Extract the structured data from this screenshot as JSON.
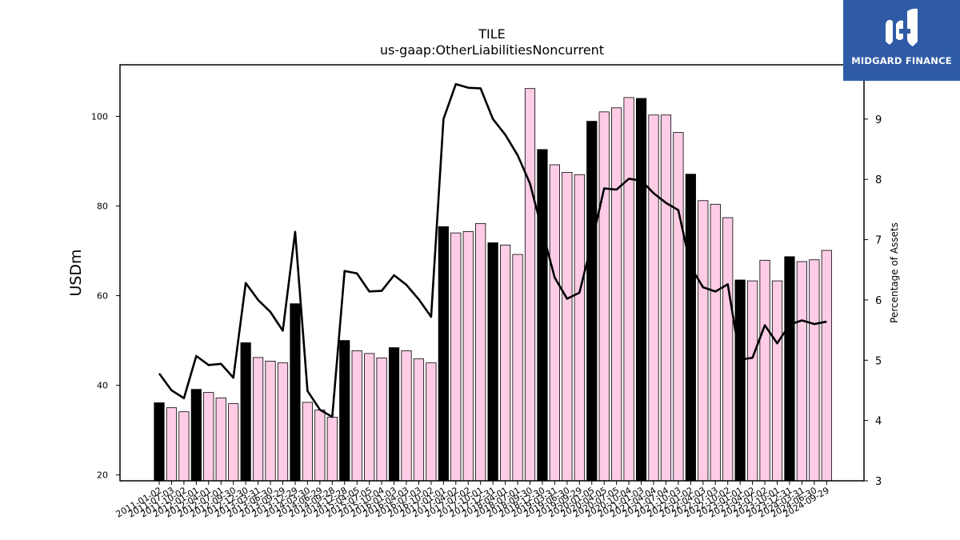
{
  "chart_data": {
    "type": "bar+line",
    "title": "TILE",
    "subtitle": "us-gaap:OtherLiabilitiesNoncurrent",
    "ylabel_left": "USDm",
    "ylabel_right": "Percentage of Assets",
    "ylim_left": [
      18.7,
      111.5
    ],
    "ylim_right": [
      3.0,
      9.9
    ],
    "yticks_left": [
      "20",
      "40",
      "60",
      "80",
      "100"
    ],
    "yticks_right": [
      "3",
      "4",
      "5",
      "6",
      "7",
      "8",
      "9"
    ],
    "grid": false,
    "categories": [
      "2011-01-02",
      "2011-07-03",
      "2011-10-02",
      "2012-01-01",
      "2012-04-01",
      "2012-07-01",
      "2012-09-30",
      "2012-12-30",
      "2013-03-31",
      "2013-06-30",
      "2013-09-29",
      "2013-12-29",
      "2014-03-30",
      "2014-06-29",
      "2014-09-28",
      "2014-12-28",
      "2015-04-05",
      "2015-07-05",
      "2015-10-04",
      "2016-01-03",
      "2016-04-03",
      "2016-07-03",
      "2016-10-02",
      "2017-01-01",
      "2017-04-02",
      "2017-07-02",
      "2017-10-01",
      "2017-12-31",
      "2018-04-01",
      "2018-07-01",
      "2018-09-30",
      "2018-12-30",
      "2019-03-31",
      "2019-06-30",
      "2019-09-29",
      "2020-01-05",
      "2020-04-05",
      "2020-07-05",
      "2020-10-04",
      "2021-01-03",
      "2021-04-04",
      "2021-07-04",
      "2021-10-03",
      "2022-01-02",
      "2022-04-03",
      "2022-07-03",
      "2022-10-02",
      "2023-01-01",
      "2023-04-02",
      "2023-07-02",
      "2023-10-01",
      "2023-12-31",
      "2024-03-31",
      "2024-06-30",
      "2024-09-29"
    ],
    "bars": {
      "name": "OtherLiabilitiesNoncurrent (USDm)",
      "values": [
        36.1,
        35.0,
        34.1,
        39.1,
        38.4,
        37.2,
        35.9,
        49.5,
        46.2,
        45.4,
        45.0,
        58.2,
        36.2,
        34.5,
        32.9,
        50.0,
        47.7,
        47.1,
        46.1,
        48.4,
        47.7,
        45.9,
        45.0,
        75.4,
        74.0,
        74.3,
        76.1,
        71.8,
        71.3,
        69.2,
        106.2,
        92.6,
        89.2,
        87.5,
        87.0,
        98.9,
        101.0,
        101.9,
        104.2,
        104.0,
        100.3,
        100.3,
        96.4,
        87.1,
        81.2,
        80.4,
        77.4,
        63.5,
        63.3,
        67.9,
        63.3,
        68.7,
        67.6,
        68.0,
        70.1
      ],
      "highlighted": [
        true,
        false,
        false,
        true,
        false,
        false,
        false,
        true,
        false,
        false,
        false,
        true,
        false,
        false,
        false,
        true,
        false,
        false,
        false,
        true,
        false,
        false,
        false,
        true,
        false,
        false,
        false,
        true,
        false,
        false,
        false,
        true,
        false,
        false,
        false,
        true,
        false,
        false,
        false,
        true,
        false,
        false,
        false,
        true,
        false,
        false,
        false,
        true,
        false,
        false,
        false,
        true,
        false,
        false,
        false
      ],
      "color_highlight": "#000000",
      "color_default": "#ffcce6",
      "edge_color": "#000000"
    },
    "line": {
      "name": "Percentage of Assets",
      "values": [
        4.78,
        4.5,
        4.37,
        5.07,
        4.92,
        4.94,
        4.71,
        6.28,
        6.0,
        5.8,
        5.49,
        7.13,
        4.49,
        4.18,
        4.06,
        6.48,
        6.44,
        6.14,
        6.15,
        6.41,
        6.25,
        6.01,
        5.72,
        9.0,
        9.58,
        9.52,
        9.51,
        9.0,
        8.74,
        8.4,
        7.93,
        7.14,
        6.37,
        6.02,
        6.12,
        6.95,
        7.85,
        7.83,
        8.01,
        7.98,
        7.77,
        7.61,
        7.49,
        6.55,
        6.21,
        6.14,
        6.26,
        5.01,
        5.04,
        5.58,
        5.28,
        5.59,
        5.66,
        5.6,
        5.64
      ],
      "color": "#000000"
    }
  },
  "logo": {
    "text": "MIDGARD FINANCE",
    "bg_color": "#2f5ba6"
  }
}
